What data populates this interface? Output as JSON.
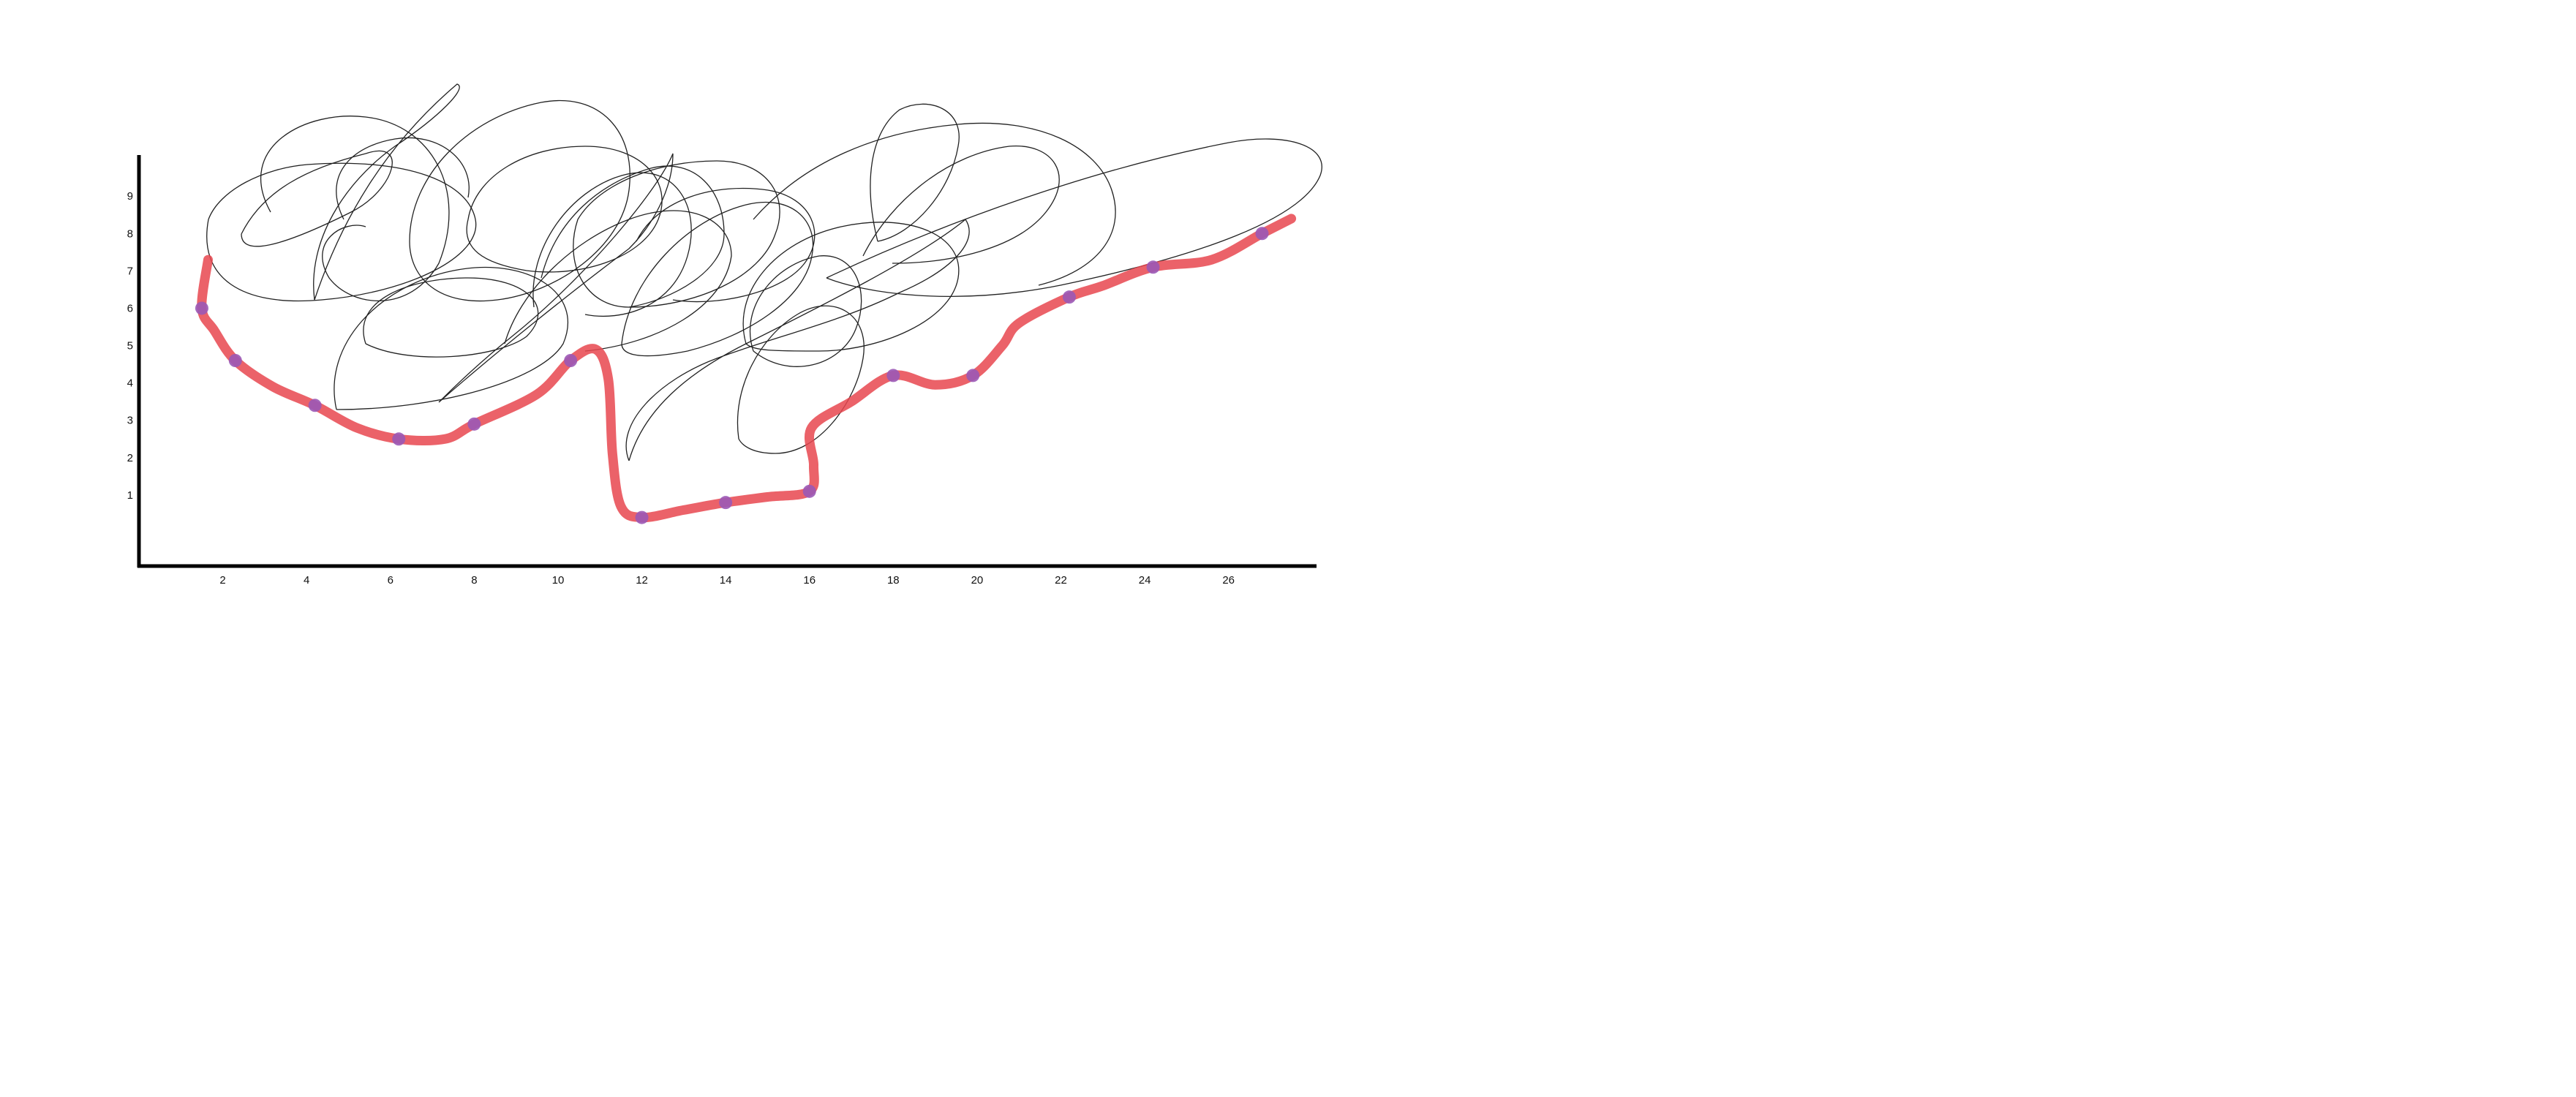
{
  "chart_data": {
    "type": "line",
    "title": "",
    "xlabel": "",
    "ylabel": "",
    "xlim": [
      0,
      28.1
    ],
    "ylim": [
      -0.9,
      10.1
    ],
    "x_ticks": [
      {
        "value": 2,
        "label": "2"
      },
      {
        "value": 4,
        "label": "4"
      },
      {
        "value": 6,
        "label": "6"
      },
      {
        "value": 8,
        "label": "8"
      },
      {
        "value": 10,
        "label": "10"
      },
      {
        "value": 12,
        "label": "12"
      },
      {
        "value": 14,
        "label": "14"
      },
      {
        "value": 16,
        "label": "16"
      },
      {
        "value": 18,
        "label": "18"
      },
      {
        "value": 20,
        "label": "20"
      },
      {
        "value": 22,
        "label": "22"
      },
      {
        "value": 24,
        "label": "24"
      },
      {
        "value": 26,
        "label": "26"
      }
    ],
    "y_ticks": [
      {
        "value": 1,
        "label": "1"
      },
      {
        "value": 2,
        "label": "2"
      },
      {
        "value": 3,
        "label": "3"
      },
      {
        "value": 4,
        "label": "4"
      },
      {
        "value": 5,
        "label": "5"
      },
      {
        "value": 6,
        "label": "6"
      },
      {
        "value": 7,
        "label": "7"
      },
      {
        "value": 8,
        "label": "8"
      },
      {
        "value": 9,
        "label": "9"
      }
    ],
    "grid": false,
    "legend": "none",
    "series": [
      {
        "color": "#e8474f",
        "marker_color": "#9b59b6",
        "points": [
          {
            "x": 1.5,
            "y": 6.0
          },
          {
            "x": 2.3,
            "y": 4.6
          },
          {
            "x": 4.2,
            "y": 3.4
          },
          {
            "x": 6.2,
            "y": 2.5
          },
          {
            "x": 8.0,
            "y": 2.9
          },
          {
            "x": 10.3,
            "y": 4.6
          },
          {
            "x": 12.0,
            "y": 0.4
          },
          {
            "x": 14.0,
            "y": 0.8
          },
          {
            "x": 16.0,
            "y": 1.1
          },
          {
            "x": 18.0,
            "y": 4.2
          },
          {
            "x": 19.9,
            "y": 4.2
          },
          {
            "x": 22.2,
            "y": 6.3
          },
          {
            "x": 24.2,
            "y": 7.1
          },
          {
            "x": 26.8,
            "y": 8.0
          }
        ],
        "line": [
          {
            "x": 1.65,
            "y": 7.3
          },
          {
            "x": 1.5,
            "y": 6.0
          },
          {
            "x": 1.8,
            "y": 5.4
          },
          {
            "x": 2.3,
            "y": 4.6
          },
          {
            "x": 3.2,
            "y": 3.9
          },
          {
            "x": 4.2,
            "y": 3.4
          },
          {
            "x": 5.2,
            "y": 2.8
          },
          {
            "x": 6.2,
            "y": 2.5
          },
          {
            "x": 7.3,
            "y": 2.5
          },
          {
            "x": 8.0,
            "y": 2.9
          },
          {
            "x": 9.5,
            "y": 3.7
          },
          {
            "x": 10.3,
            "y": 4.6
          },
          {
            "x": 10.9,
            "y": 4.9
          },
          {
            "x": 11.2,
            "y": 4.1
          },
          {
            "x": 11.3,
            "y": 2.1
          },
          {
            "x": 11.5,
            "y": 0.7
          },
          {
            "x": 12.0,
            "y": 0.4
          },
          {
            "x": 13.0,
            "y": 0.6
          },
          {
            "x": 14.0,
            "y": 0.8
          },
          {
            "x": 15.0,
            "y": 0.95
          },
          {
            "x": 16.0,
            "y": 1.1
          },
          {
            "x": 16.1,
            "y": 1.8
          },
          {
            "x": 16.05,
            "y": 2.8
          },
          {
            "x": 17.0,
            "y": 3.5
          },
          {
            "x": 18.0,
            "y": 4.2
          },
          {
            "x": 19.0,
            "y": 3.95
          },
          {
            "x": 19.9,
            "y": 4.2
          },
          {
            "x": 20.6,
            "y": 5.0
          },
          {
            "x": 21.0,
            "y": 5.6
          },
          {
            "x": 22.2,
            "y": 6.3
          },
          {
            "x": 23.0,
            "y": 6.6
          },
          {
            "x": 24.2,
            "y": 7.1
          },
          {
            "x": 25.6,
            "y": 7.3
          },
          {
            "x": 26.8,
            "y": 8.0
          },
          {
            "x": 27.5,
            "y": 8.4
          }
        ]
      }
    ]
  }
}
